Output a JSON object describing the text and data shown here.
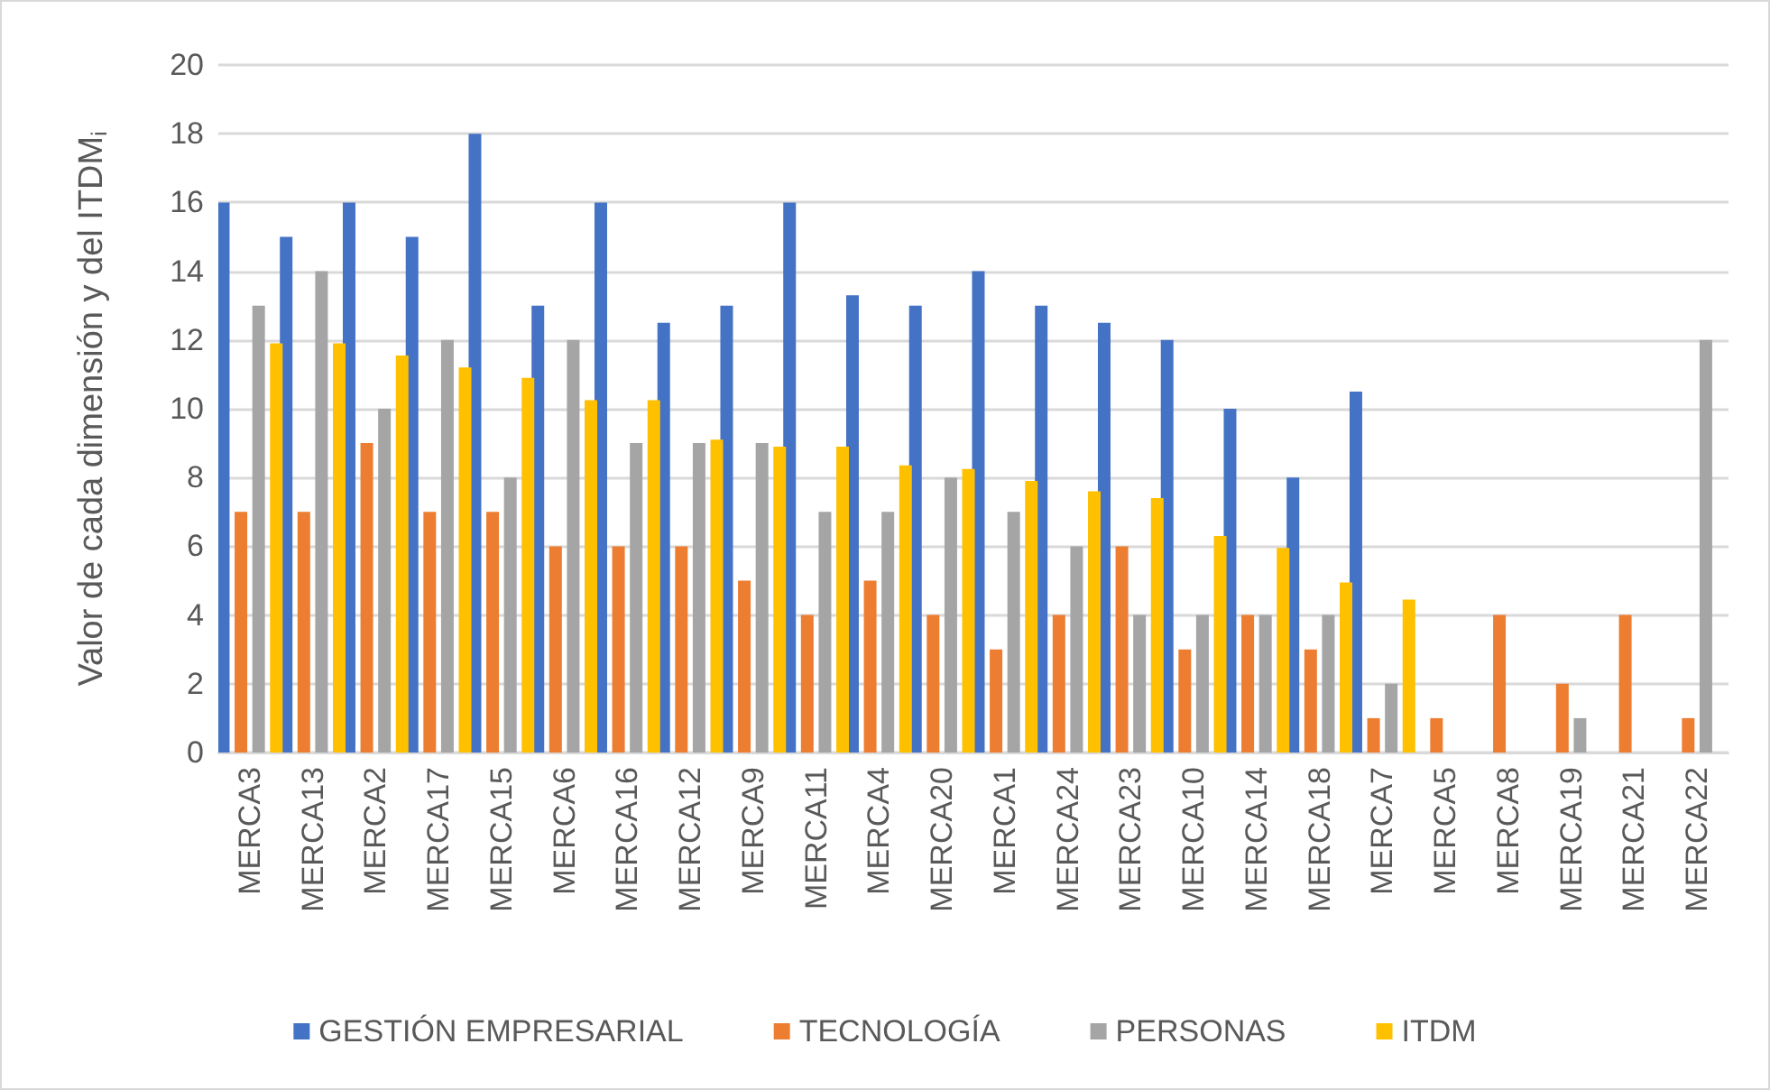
{
  "chart_data": {
    "type": "bar",
    "ylabel": "Valor de cada dimensión y del ITDM$_{i}$",
    "categories": [
      "MERCA3",
      "MERCA13",
      "MERCA2",
      "MERCA17",
      "MERCA15",
      "MERCA6",
      "MERCA16",
      "MERCA12",
      "MERCA9",
      "MERCA11",
      "MERCA4",
      "MERCA20",
      "MERCA1",
      "MERCA24",
      "MERCA23",
      "MERCA10",
      "MERCA14",
      "MERCA18",
      "MERCA7",
      "MERCA5",
      "MERCA8",
      "MERCA19",
      "MERCA21",
      "MERCA22"
    ],
    "series": [
      {
        "name": "GESTIÓN EMPRESARIAL",
        "color": "#4472c4",
        "values": [
          16,
          15,
          16,
          15,
          18,
          13,
          16,
          12.5,
          13,
          16,
          13.3,
          13,
          14,
          13,
          12.5,
          12,
          10,
          8,
          10.5,
          0,
          0,
          0,
          0,
          0
        ]
      },
      {
        "name": "TECNOLOGÍA",
        "color": "#ed7d31",
        "values": [
          7,
          7,
          9,
          7,
          7,
          6,
          6,
          6,
          5,
          4,
          5,
          4,
          3,
          4,
          6,
          3,
          4,
          3,
          1,
          1,
          4,
          2,
          4,
          1
        ]
      },
      {
        "name": "PERSONAS",
        "color": "#a5a5a5",
        "values": [
          13,
          14,
          10,
          12,
          8,
          12,
          9,
          9,
          9,
          7,
          7,
          8,
          7,
          6,
          4,
          4,
          4,
          4,
          2,
          0,
          0,
          1,
          0,
          12
        ]
      },
      {
        "name": "ITDM",
        "color": "#ffc000",
        "values": [
          11.9,
          11.9,
          11.55,
          11.2,
          10.9,
          10.25,
          10.25,
          9.1,
          8.9,
          8.9,
          8.35,
          8.25,
          7.9,
          7.6,
          7.4,
          6.3,
          5.95,
          4.95,
          4.45,
          0,
          0,
          0,
          0,
          0
        ]
      }
    ],
    "ylim": [
      0,
      20
    ],
    "yticks": [
      0,
      2,
      4,
      6,
      8,
      10,
      12,
      14,
      16,
      18,
      20
    ],
    "grid": "y",
    "legend": "bottom"
  }
}
